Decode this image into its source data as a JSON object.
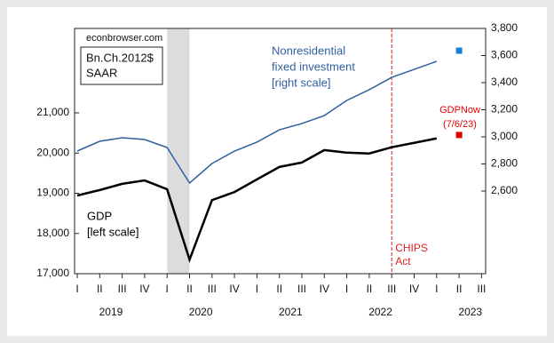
{
  "chart_data": {
    "type": "line",
    "source": "econbrowser.com",
    "units_box": [
      "Bn.Ch.2012$",
      "SAAR"
    ],
    "categories": [
      "I",
      "II",
      "III",
      "IV",
      "I",
      "II",
      "III",
      "IV",
      "I",
      "II",
      "III",
      "IV",
      "I",
      "II",
      "III",
      "IV",
      "I",
      "II",
      "III"
    ],
    "years": [
      "2019",
      "2020",
      "2021",
      "2022",
      "2023"
    ],
    "ylim": [
      17000,
      23100
    ],
    "yticks": [
      {
        "value": 17000,
        "label": "17,000"
      },
      {
        "value": 18000,
        "label": "18,000"
      },
      {
        "value": 19000,
        "label": "19,000"
      },
      {
        "value": 20000,
        "label": "20,000"
      },
      {
        "value": 21000,
        "label": "21,000"
      }
    ],
    "y2lim": [
      1990,
      3800
    ],
    "y2ticks": [
      {
        "value": 2600,
        "label": "2,600"
      },
      {
        "value": 2800,
        "label": "2,800"
      },
      {
        "value": 3000,
        "label": "3,000"
      },
      {
        "value": 3200,
        "label": "3,200"
      },
      {
        "value": 3400,
        "label": "3,400"
      },
      {
        "value": 3600,
        "label": "3,600"
      },
      {
        "value": 3800,
        "label": "3,800"
      }
    ],
    "shaded_range": [
      4,
      5
    ],
    "vline": {
      "index": 14,
      "color": "#e02020",
      "label": [
        "CHIPS",
        "Act"
      ]
    },
    "series": [
      {
        "color": "#000000",
        "width": 2.5,
        "axis": "y",
        "label": [
          "GDP",
          "[left scale]"
        ],
        "values": [
          18945,
          19080,
          19235,
          19320,
          19100,
          17350,
          18830,
          19030,
          19345,
          19655,
          19765,
          20075,
          20010,
          19990,
          20145,
          20255,
          20365,
          null,
          null
        ]
      },
      {
        "color": "#2f5f9e",
        "width": 1.5,
        "axis": "y2",
        "label": [
          "Nonresidential",
          "fixed investment",
          "[right scale]"
        ],
        "values": [
          2895,
          2967,
          2993,
          2980,
          2921,
          2659,
          2803,
          2895,
          2961,
          3052,
          3098,
          3157,
          3269,
          3348,
          3439,
          3498,
          3557,
          null,
          null
        ]
      },
      {
        "color": "#e00000",
        "marker": "square",
        "axis": "y",
        "label": [
          "GDPNow",
          "(7/6/23)"
        ],
        "values": [
          null,
          null,
          null,
          null,
          null,
          null,
          null,
          null,
          null,
          null,
          null,
          null,
          null,
          null,
          null,
          null,
          null,
          20450,
          null
        ]
      },
      {
        "color": "#1a7fd4",
        "marker": "square",
        "axis": "y2",
        "values": [
          null,
          null,
          null,
          null,
          null,
          null,
          null,
          null,
          null,
          null,
          null,
          null,
          null,
          null,
          null,
          null,
          null,
          3636,
          null
        ]
      }
    ]
  }
}
